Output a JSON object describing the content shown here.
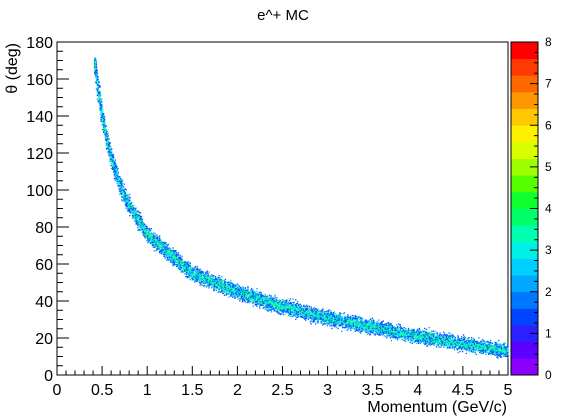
{
  "chart_data": {
    "type": "heatmap",
    "title": "e^+ MC",
    "xlabel": "Momentum (GeV/c)",
    "ylabel": "θ (deg)",
    "xlim": [
      0,
      5
    ],
    "ylim": [
      0,
      180
    ],
    "zlim": [
      0,
      8
    ],
    "x_major_ticks": [
      0,
      0.5,
      1,
      1.5,
      2,
      2.5,
      3,
      3.5,
      4,
      4.5,
      5
    ],
    "x_tick_labels": [
      "0",
      "0.5",
      "1",
      "1.5",
      "2",
      "2.5",
      "3",
      "3.5",
      "4",
      "4.5",
      "5"
    ],
    "y_major_ticks": [
      0,
      20,
      40,
      60,
      80,
      100,
      120,
      140,
      160,
      180
    ],
    "y_tick_labels": [
      "0",
      "20",
      "40",
      "60",
      "80",
      "100",
      "120",
      "140",
      "160",
      "180"
    ],
    "z_major_ticks": [
      0,
      1,
      2,
      3,
      4,
      5,
      6,
      7,
      8
    ],
    "z_tick_labels": [
      "0",
      "1",
      "2",
      "3",
      "4",
      "5",
      "6",
      "7",
      "8"
    ],
    "band_centerline": [
      {
        "x": 0.42,
        "y": 168
      },
      {
        "x": 0.5,
        "y": 140
      },
      {
        "x": 0.6,
        "y": 117
      },
      {
        "x": 0.75,
        "y": 96
      },
      {
        "x": 1.0,
        "y": 76
      },
      {
        "x": 1.5,
        "y": 55
      },
      {
        "x": 2.0,
        "y": 45
      },
      {
        "x": 2.5,
        "y": 37
      },
      {
        "x": 3.0,
        "y": 31
      },
      {
        "x": 3.5,
        "y": 26
      },
      {
        "x": 4.0,
        "y": 21
      },
      {
        "x": 4.5,
        "y": 17
      },
      {
        "x": 5.0,
        "y": 13
      }
    ],
    "grid": false,
    "legend": "colorbar-right",
    "colorbar_colors": [
      "#8b00ff",
      "#5c00ff",
      "#2d1fff",
      "#0044ff",
      "#0077ff",
      "#00a8ff",
      "#00d0ff",
      "#00f0e8",
      "#00ffb0",
      "#00ff6a",
      "#10ff30",
      "#55ff00",
      "#9dff00",
      "#d8ff00",
      "#fff000",
      "#ffc800",
      "#ff9800",
      "#ff6800",
      "#ff3a00",
      "#ff0000"
    ]
  }
}
